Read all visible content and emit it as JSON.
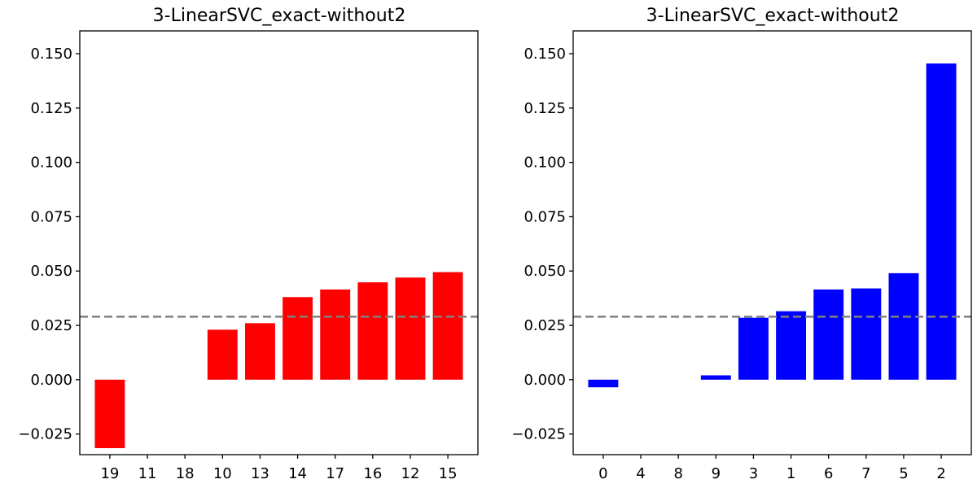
{
  "chart_data": [
    {
      "type": "bar",
      "title": "3-LinearSVC_exact-without2",
      "xlabel": "",
      "ylabel": "",
      "categories": [
        "19",
        "11",
        "18",
        "10",
        "13",
        "14",
        "17",
        "16",
        "12",
        "15"
      ],
      "values": [
        -0.0315,
        0.0,
        0.0,
        0.023,
        0.026,
        0.038,
        0.0415,
        0.0448,
        0.047,
        0.0495
      ],
      "color": "#ff0000",
      "ylim": [
        -0.0345,
        0.1605
      ],
      "yticks": [
        -0.025,
        0.0,
        0.025,
        0.05,
        0.075,
        0.1,
        0.125,
        0.15
      ],
      "ytick_labels": [
        "−0.025",
        "0.000",
        "0.025",
        "0.050",
        "0.075",
        "0.100",
        "0.125",
        "0.150"
      ],
      "reference_line": 0.029,
      "reference_color": "#808080",
      "grid": false
    },
    {
      "type": "bar",
      "title": "3-LinearSVC_exact-without2",
      "xlabel": "",
      "ylabel": "",
      "categories": [
        "0",
        "4",
        "8",
        "9",
        "3",
        "1",
        "6",
        "7",
        "5",
        "2"
      ],
      "values": [
        -0.0035,
        0.0,
        0.0,
        0.002,
        0.0285,
        0.0315,
        0.0415,
        0.042,
        0.049,
        0.1455
      ],
      "color": "#0000ff",
      "ylim": [
        -0.0345,
        0.1605
      ],
      "yticks": [
        -0.025,
        0.0,
        0.025,
        0.05,
        0.075,
        0.1,
        0.125,
        0.15
      ],
      "ytick_labels": [
        "−0.025",
        "0.000",
        "0.025",
        "0.050",
        "0.075",
        "0.100",
        "0.125",
        "0.150"
      ],
      "reference_line": 0.029,
      "reference_color": "#808080",
      "grid": false
    }
  ]
}
